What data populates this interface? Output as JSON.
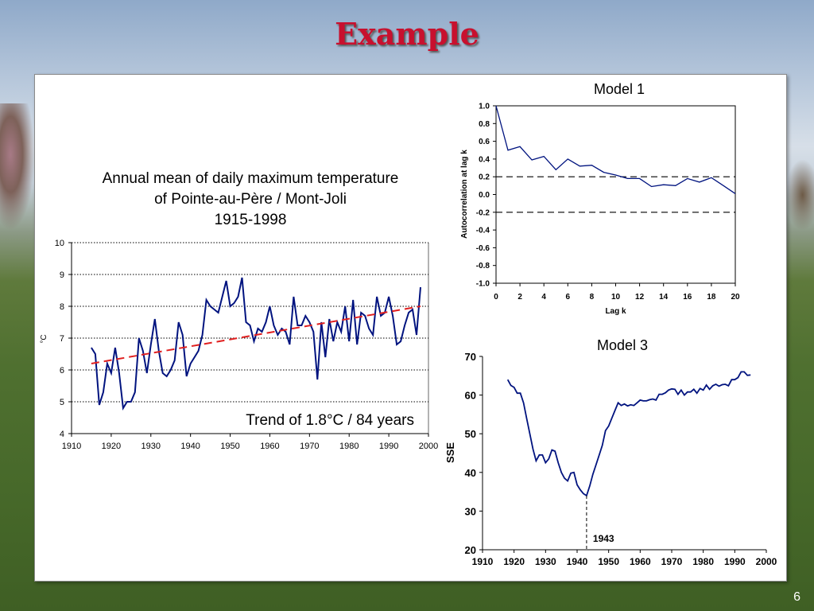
{
  "slide": {
    "title": "Example",
    "page_number": "6"
  },
  "chart_data": [
    {
      "type": "line",
      "title_lines": [
        "Annual mean of daily maximum temperature",
        "of Pointe-au-Père / Mont-Joli",
        "1915-1998"
      ],
      "xlabel": "",
      "ylabel": "°C",
      "xlim": [
        1910,
        2000
      ],
      "ylim": [
        4,
        10
      ],
      "x_ticks": [
        1910,
        1920,
        1930,
        1940,
        1950,
        1960,
        1970,
        1980,
        1990,
        2000
      ],
      "y_ticks": [
        4,
        5,
        6,
        7,
        8,
        9,
        10
      ],
      "grid": "horizontal dotted",
      "annotation": "Trend of 1.8°C / 84 years",
      "series": [
        {
          "color": "#00137f",
          "x": [
            1915,
            1916,
            1917,
            1918,
            1919,
            1920,
            1921,
            1922,
            1923,
            1924,
            1925,
            1926,
            1927,
            1928,
            1929,
            1930,
            1931,
            1932,
            1933,
            1934,
            1935,
            1936,
            1937,
            1938,
            1939,
            1940,
            1941,
            1942,
            1943,
            1944,
            1945,
            1946,
            1947,
            1948,
            1949,
            1950,
            1951,
            1952,
            1953,
            1954,
            1955,
            1956,
            1957,
            1958,
            1959,
            1960,
            1961,
            1962,
            1963,
            1964,
            1965,
            1966,
            1967,
            1968,
            1969,
            1970,
            1971,
            1972,
            1973,
            1974,
            1975,
            1976,
            1977,
            1978,
            1979,
            1980,
            1981,
            1982,
            1983,
            1984,
            1985,
            1986,
            1987,
            1988,
            1989,
            1990,
            1991,
            1992,
            1993,
            1994,
            1995,
            1996,
            1997,
            1998
          ],
          "y": [
            6.7,
            6.5,
            4.9,
            5.3,
            6.2,
            5.9,
            6.7,
            5.9,
            4.8,
            5.0,
            5.0,
            5.3,
            7.0,
            6.6,
            5.9,
            6.8,
            7.6,
            6.6,
            5.9,
            5.8,
            6.0,
            6.3,
            7.5,
            7.1,
            5.8,
            6.2,
            6.4,
            6.6,
            7.1,
            8.2,
            8.0,
            7.9,
            7.8,
            8.3,
            8.8,
            8.0,
            8.1,
            8.3,
            8.9,
            7.5,
            7.4,
            6.9,
            7.3,
            7.2,
            7.5,
            8.0,
            7.4,
            7.1,
            7.3,
            7.2,
            6.8,
            8.3,
            7.4,
            7.4,
            7.7,
            7.5,
            7.2,
            5.7,
            7.5,
            6.4,
            7.6,
            6.9,
            7.5,
            7.2,
            8.0,
            6.9,
            8.2,
            6.8,
            7.8,
            7.7,
            7.3,
            7.1,
            8.3,
            7.7,
            7.8,
            8.3,
            7.7,
            6.8,
            6.9,
            7.4,
            7.8,
            7.9,
            7.1,
            8.6
          ]
        },
        {
          "color": "#e02020",
          "style": "dashed",
          "x": [
            1915,
            1998
          ],
          "y": [
            6.2,
            8.0
          ]
        }
      ]
    },
    {
      "type": "line",
      "title": "Model 1",
      "xlabel": "Lag k",
      "ylabel": "Autocorrelation at lag k",
      "xlim": [
        0,
        20
      ],
      "ylim": [
        -1.0,
        1.0
      ],
      "x_ticks": [
        0,
        2,
        4,
        6,
        8,
        10,
        12,
        14,
        16,
        18,
        20
      ],
      "y_ticks": [
        "-1.0",
        "-0.8",
        "-0.6",
        "-0.4",
        "-0.2",
        "0.0",
        "0.2",
        "0.4",
        "0.6",
        "0.8",
        "1.0"
      ],
      "reference_lines": [
        0.2,
        -0.2
      ],
      "series": [
        {
          "color": "#00137f",
          "x": [
            0,
            1,
            2,
            3,
            4,
            5,
            6,
            7,
            8,
            9,
            10,
            11,
            12,
            13,
            14,
            15,
            16,
            17,
            18,
            19,
            20
          ],
          "y": [
            1.0,
            0.5,
            0.54,
            0.39,
            0.43,
            0.28,
            0.4,
            0.32,
            0.33,
            0.25,
            0.22,
            0.18,
            0.18,
            0.09,
            0.11,
            0.1,
            0.18,
            0.14,
            0.19,
            0.1,
            0.01
          ]
        }
      ]
    },
    {
      "type": "line",
      "title": "Model 3",
      "xlabel": "",
      "ylabel": "SSE",
      "xlim": [
        1910,
        2000
      ],
      "ylim": [
        20,
        70
      ],
      "x_ticks": [
        1910,
        1920,
        1930,
        1940,
        1950,
        1960,
        1970,
        1980,
        1990,
        2000
      ],
      "y_ticks": [
        20,
        30,
        40,
        50,
        60,
        70
      ],
      "annotation": "1943",
      "marker_x": 1943,
      "series": [
        {
          "color": "#00137f",
          "x": [
            1918,
            1919,
            1920,
            1921,
            1922,
            1923,
            1924,
            1925,
            1926,
            1927,
            1928,
            1929,
            1930,
            1931,
            1932,
            1933,
            1934,
            1935,
            1936,
            1937,
            1938,
            1939,
            1940,
            1941,
            1942,
            1943,
            1944,
            1945,
            1946,
            1947,
            1948,
            1949,
            1950,
            1951,
            1952,
            1953,
            1954,
            1955,
            1956,
            1957,
            1958,
            1959,
            1960,
            1961,
            1962,
            1963,
            1964,
            1965,
            1966,
            1967,
            1968,
            1969,
            1970,
            1971,
            1972,
            1973,
            1974,
            1975,
            1976,
            1977,
            1978,
            1979,
            1980,
            1981,
            1982,
            1983,
            1984,
            1985,
            1986,
            1987,
            1988,
            1989,
            1990,
            1991,
            1992,
            1993,
            1994,
            1995
          ],
          "y": [
            64,
            62.5,
            62,
            60.5,
            60.5,
            58,
            54,
            50,
            46,
            43,
            44.5,
            44.5,
            42.5,
            43.5,
            45.8,
            45.5,
            42.5,
            40,
            38.5,
            37.8,
            39.8,
            40,
            36.8,
            35.5,
            34.5,
            34,
            36.5,
            39.5,
            42,
            44.5,
            47,
            50.8,
            52,
            54,
            56,
            58,
            57.3,
            57.7,
            57.2,
            57.5,
            57.3,
            58,
            58.7,
            58.5,
            58.5,
            58.8,
            59,
            58.7,
            60.2,
            60.2,
            60.6,
            61.3,
            61.6,
            61.5,
            60.2,
            61.3,
            60,
            60.8,
            60.8,
            61.5,
            60.5,
            61.7,
            61.3,
            62.6,
            61.5,
            62.4,
            62.8,
            62.3,
            62.7,
            62.8,
            62.4,
            64,
            64,
            64.5,
            66,
            66,
            65.1,
            65.2
          ]
        }
      ]
    }
  ]
}
